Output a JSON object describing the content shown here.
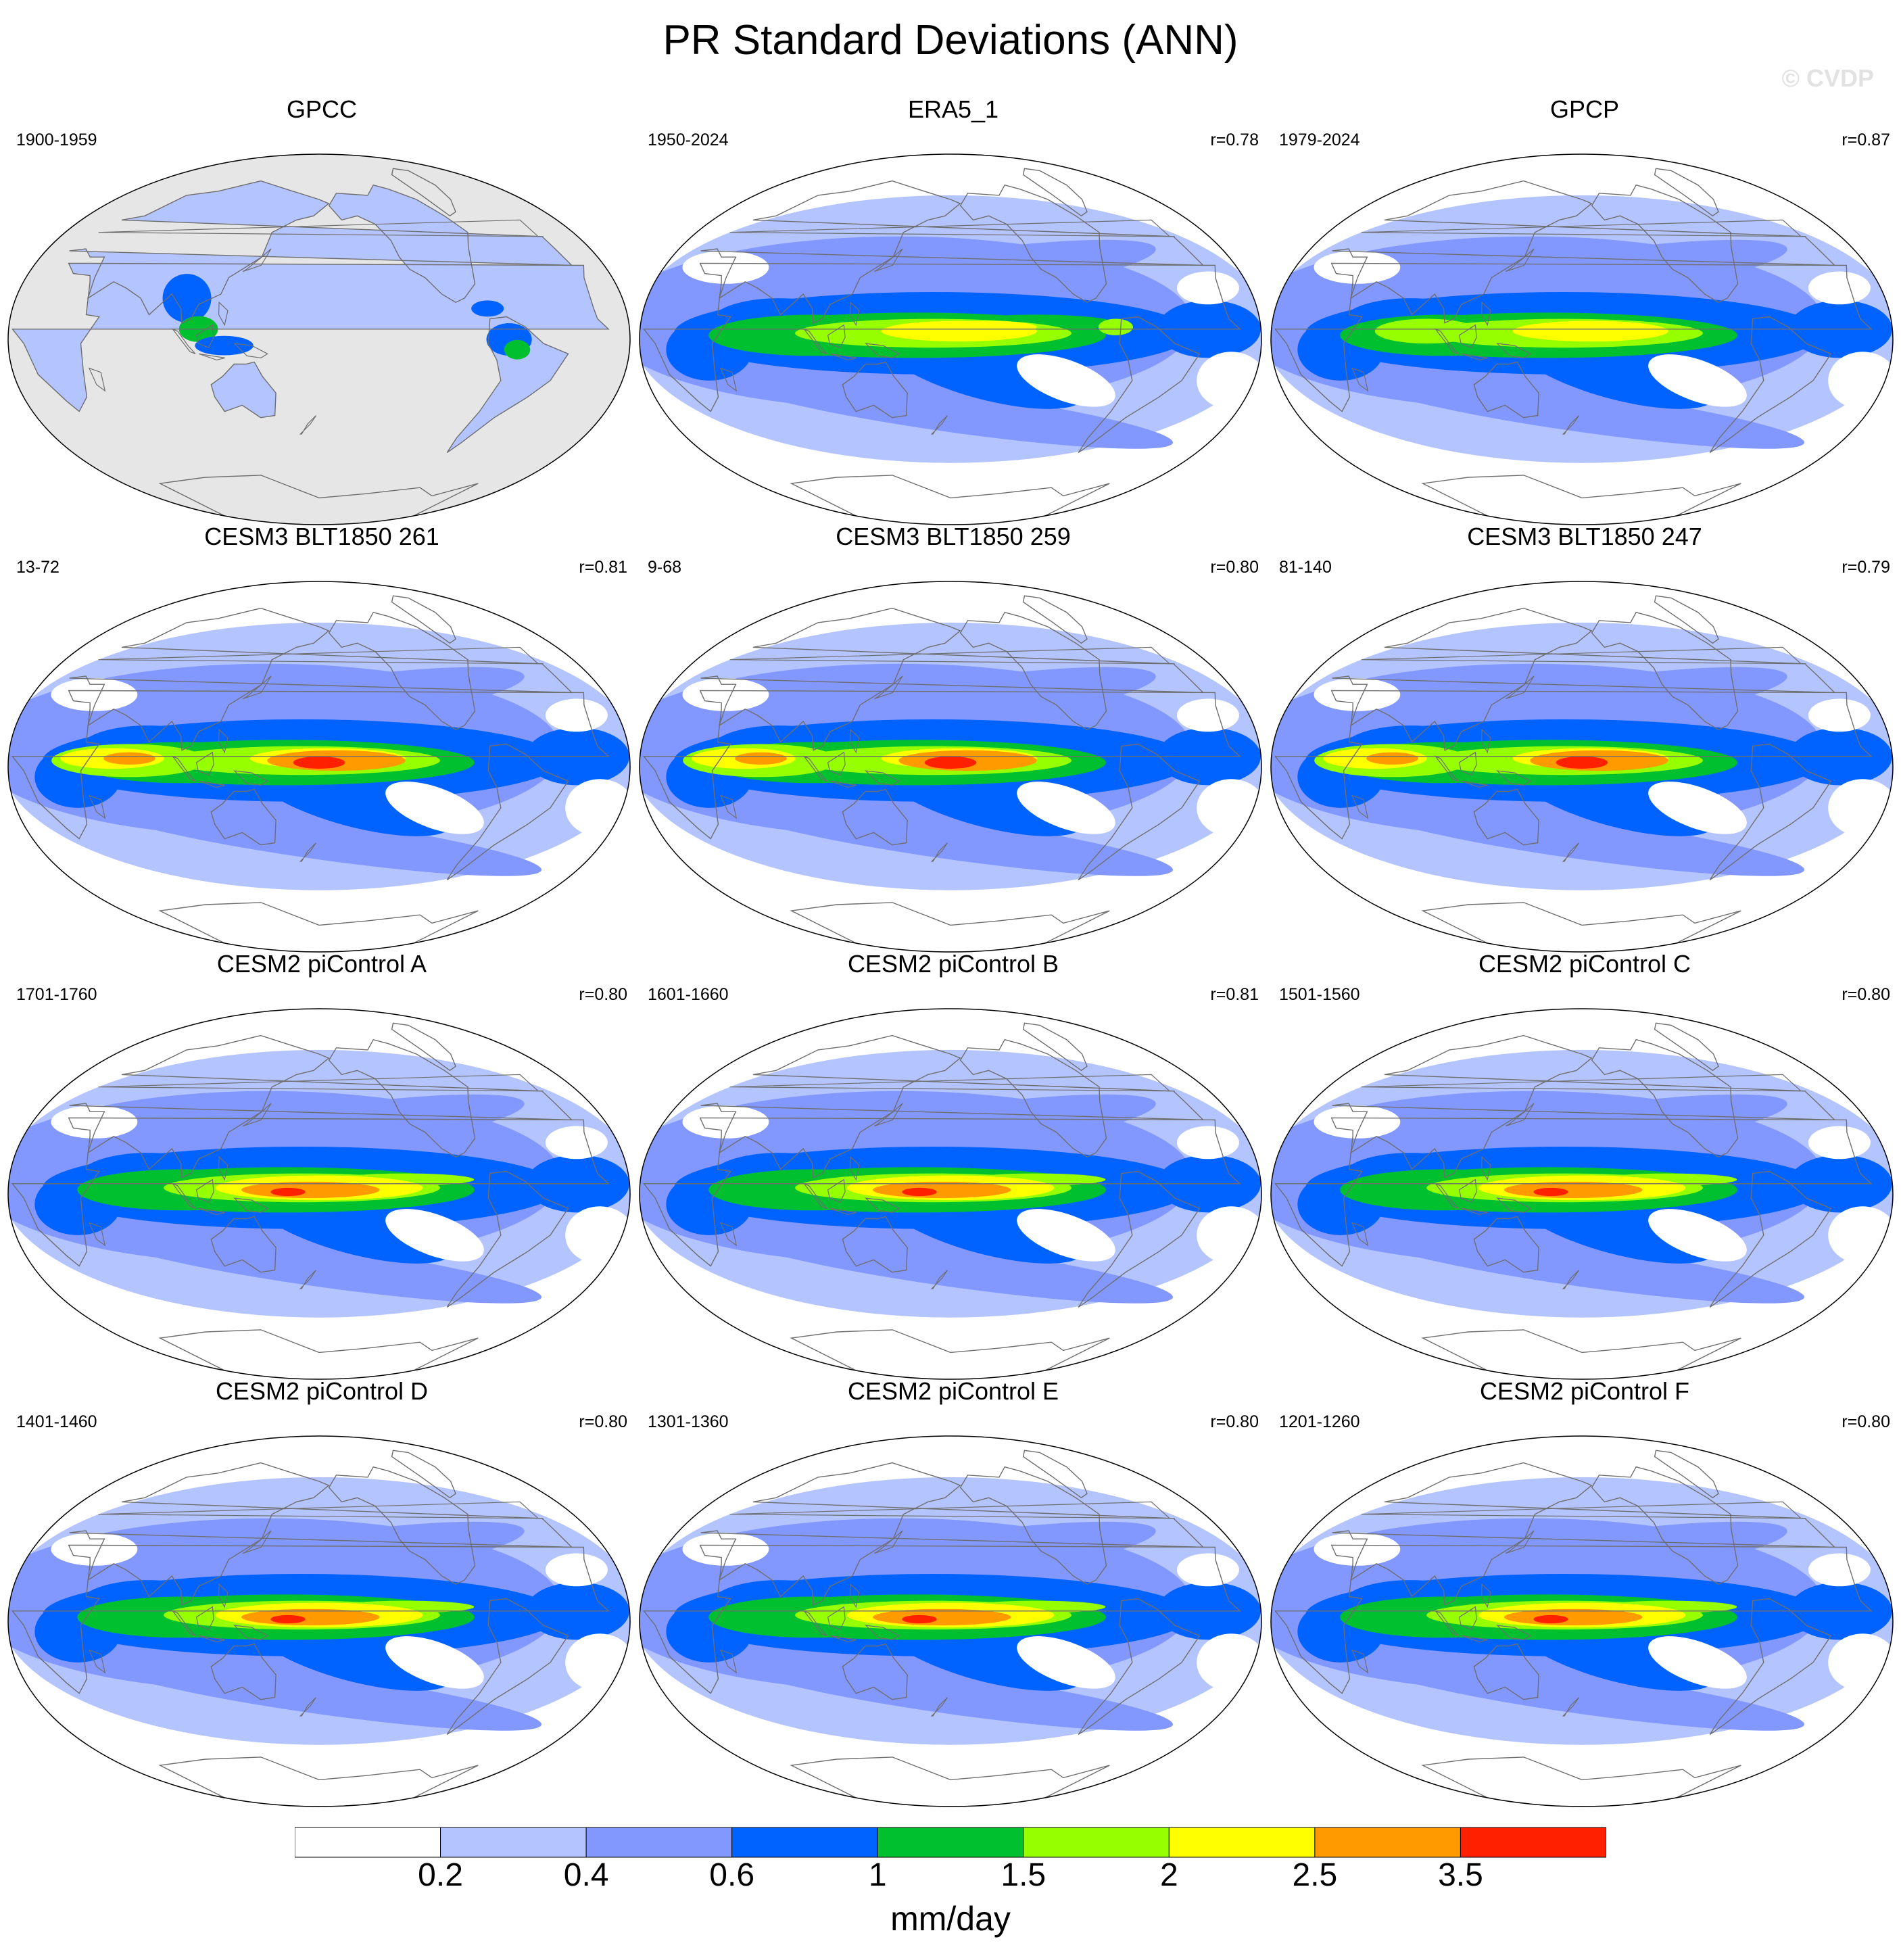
{
  "title": "PR Standard Deviations (ANN)",
  "watermark": "© CVDP",
  "chart_data": {
    "type": "heatmap",
    "projection": "robinson",
    "layout": "4 rows x 3 columns",
    "panels": [
      {
        "name": "GPCC",
        "period": "1900-1959",
        "r": "",
        "coverage": "land-only",
        "pattern": "obs_land"
      },
      {
        "name": "ERA5_1",
        "period": "1950-2024",
        "r": "r=0.78",
        "coverage": "global",
        "pattern": "obs_era5"
      },
      {
        "name": "GPCP",
        "period": "1979-2024",
        "r": "r=0.87",
        "coverage": "global",
        "pattern": "obs_gpcp"
      },
      {
        "name": "CESM3 BLT1850 261",
        "period": "13-72",
        "r": "r=0.81",
        "coverage": "global",
        "pattern": "cesm3"
      },
      {
        "name": "CESM3 BLT1850 259",
        "period": "9-68",
        "r": "r=0.80",
        "coverage": "global",
        "pattern": "cesm3"
      },
      {
        "name": "CESM3 BLT1850 247",
        "period": "81-140",
        "r": "r=0.79",
        "coverage": "global",
        "pattern": "cesm3"
      },
      {
        "name": "CESM2 piControl A",
        "period": "1701-1760",
        "r": "r=0.80",
        "coverage": "global",
        "pattern": "cesm2"
      },
      {
        "name": "CESM2 piControl B",
        "period": "1601-1660",
        "r": "r=0.81",
        "coverage": "global",
        "pattern": "cesm2"
      },
      {
        "name": "CESM2 piControl C",
        "period": "1501-1560",
        "r": "r=0.80",
        "coverage": "global",
        "pattern": "cesm2"
      },
      {
        "name": "CESM2 piControl D",
        "period": "1401-1460",
        "r": "r=0.80",
        "coverage": "global",
        "pattern": "cesm2"
      },
      {
        "name": "CESM2 piControl E",
        "period": "1301-1360",
        "r": "r=0.80",
        "coverage": "global",
        "pattern": "cesm2"
      },
      {
        "name": "CESM2 piControl F",
        "period": "1201-1260",
        "r": "r=0.80",
        "coverage": "global",
        "pattern": "cesm2"
      }
    ],
    "colorbar": {
      "levels": [
        "0.2",
        "0.4",
        "0.6",
        "1",
        "1.5",
        "2",
        "2.5",
        "3.5"
      ],
      "colors": [
        "#ffffff",
        "#b4c4ff",
        "#8298ff",
        "#0062ff",
        "#00c030",
        "#96ff00",
        "#ffff00",
        "#ff9a00",
        "#ff2000"
      ],
      "units": "mm/day"
    },
    "missing_color": "#e6e6e6"
  }
}
